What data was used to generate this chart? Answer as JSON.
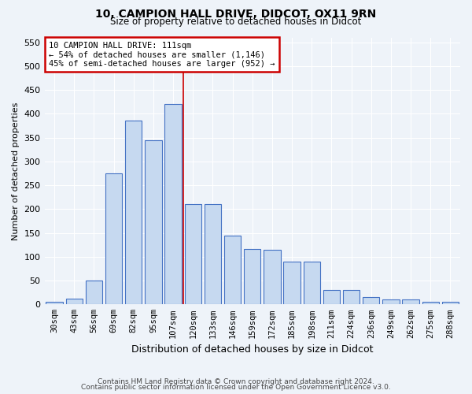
{
  "title1": "10, CAMPION HALL DRIVE, DIDCOT, OX11 9RN",
  "title2": "Size of property relative to detached houses in Didcot",
  "xlabel": "Distribution of detached houses by size in Didcot",
  "ylabel": "Number of detached properties",
  "categories": [
    "30sqm",
    "43sqm",
    "56sqm",
    "69sqm",
    "82sqm",
    "95sqm",
    "107sqm",
    "120sqm",
    "133sqm",
    "146sqm",
    "159sqm",
    "172sqm",
    "185sqm",
    "198sqm",
    "211sqm",
    "224sqm",
    "236sqm",
    "249sqm",
    "262sqm",
    "275sqm",
    "288sqm"
  ],
  "values": [
    5,
    12,
    50,
    275,
    385,
    345,
    420,
    210,
    210,
    145,
    116,
    115,
    90,
    90,
    30,
    30,
    15,
    10,
    10,
    5,
    5
  ],
  "bar_color": "#c6d9f0",
  "bar_edge_color": "#4472c4",
  "vline_x": 6.5,
  "vline_color": "#cc0000",
  "annotation_line1": "10 CAMPION HALL DRIVE: 111sqm",
  "annotation_line2": "← 54% of detached houses are smaller (1,146)",
  "annotation_line3": "45% of semi-detached houses are larger (952) →",
  "annotation_box_color": "#cc0000",
  "ylim": [
    0,
    560
  ],
  "yticks": [
    0,
    50,
    100,
    150,
    200,
    250,
    300,
    350,
    400,
    450,
    500,
    550
  ],
  "footer1": "Contains HM Land Registry data © Crown copyright and database right 2024.",
  "footer2": "Contains public sector information licensed under the Open Government Licence v3.0.",
  "bg_color": "#eef3f9",
  "grid_color": "#ffffff"
}
